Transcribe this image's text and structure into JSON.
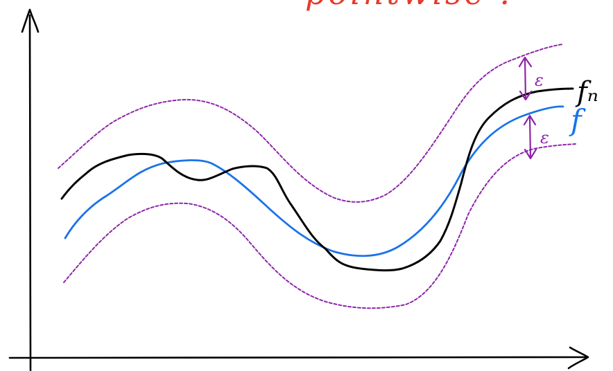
{
  "header_note": {
    "text": "pointwise ?",
    "color": "#e8392b"
  },
  "labels": {
    "fn": {
      "text": "fₙ",
      "color": "#000000"
    },
    "f": {
      "text": "f",
      "color": "#1a73e8"
    },
    "epsilon_upper": {
      "text": "ε",
      "color": "#8e24aa"
    },
    "epsilon_lower": {
      "text": "ε",
      "color": "#8e24aa"
    }
  },
  "colors": {
    "axes": "#000000",
    "fn_curve": "#000000",
    "f_curve": "#1a73e8",
    "band": "#8e24aa"
  }
}
